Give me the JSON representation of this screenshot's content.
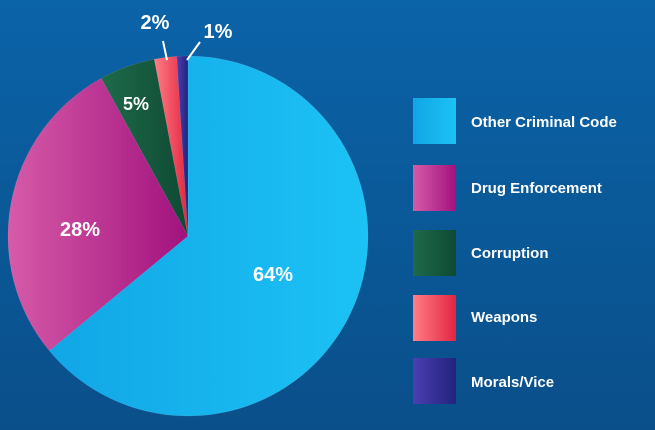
{
  "chart_data": {
    "type": "pie",
    "slices": [
      {
        "label": "Other Criminal Code",
        "value": 64,
        "display": "64%",
        "colors": [
          "#11a6e6",
          "#1cc2f5"
        ]
      },
      {
        "label": "Drug Enforcement",
        "value": 28,
        "display": "28%",
        "colors": [
          "#d65ba8",
          "#a2127e"
        ]
      },
      {
        "label": "Corruption",
        "value": 5,
        "display": "5%",
        "colors": [
          "#1f6a4a",
          "#0e4a33"
        ]
      },
      {
        "label": "Weapons",
        "value": 2,
        "display": "2%",
        "colors": [
          "#ff7e87",
          "#e2253f"
        ]
      },
      {
        "label": "Morals/Vice",
        "value": 1,
        "display": "1%",
        "colors": [
          "#4b3fb2",
          "#23237c"
        ]
      }
    ],
    "legend_position": "right"
  }
}
